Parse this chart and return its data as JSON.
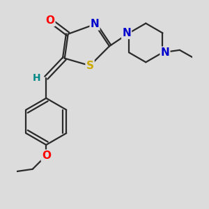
{
  "bg_color": "#dcdcdc",
  "bond_color": "#2a2a2a",
  "atom_colors": {
    "O": "#ff0000",
    "N": "#0000cc",
    "S": "#ccaa00",
    "H": "#008888",
    "C": "#2a2a2a"
  },
  "lw": 1.6,
  "fs": 10
}
